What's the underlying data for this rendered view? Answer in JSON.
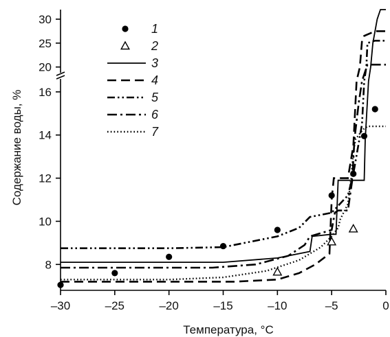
{
  "chart_data": {
    "type": "line",
    "xlabel": "Температура, °C",
    "ylabel": "Содержание воды, %",
    "xlim": [
      -30,
      0
    ],
    "ylim_lower": [
      6.8,
      16.6
    ],
    "ylim_upper": [
      18.8,
      32
    ],
    "axis_break": true,
    "x_ticks": [
      -30,
      -25,
      -20,
      -15,
      -10,
      -5,
      0
    ],
    "x_tick_labels": [
      "–30",
      "–25",
      "–20",
      "–15",
      "–10",
      "–5",
      "0"
    ],
    "y_ticks": [
      8,
      10,
      12,
      14,
      16,
      20,
      25,
      30
    ],
    "y_tick_labels": [
      "8",
      "10",
      "12",
      "14",
      "16",
      "20",
      "25",
      "30"
    ],
    "legend_position": "top-left",
    "grid": false,
    "series": [
      {
        "name": "1",
        "style": "marker-filled-circle",
        "x": [
          -30,
          -25,
          -20,
          -15,
          -10,
          -5,
          -3,
          -2,
          -1
        ],
        "y": [
          7.05,
          7.6,
          8.35,
          8.85,
          9.6,
          11.2,
          12.2,
          13.95,
          15.2
        ]
      },
      {
        "name": "2",
        "style": "marker-open-triangle",
        "x": [
          -10,
          -5,
          -3
        ],
        "y": [
          7.65,
          9.05,
          9.65
        ]
      },
      {
        "name": "3",
        "style": "solid",
        "x": [
          -30,
          -15,
          -10,
          -7,
          -6.8,
          -5,
          -4.6,
          -4.4,
          -2,
          -1.9,
          -1.6,
          -1.4,
          -1.2,
          -0.8,
          -0.5,
          0
        ],
        "y": [
          8.1,
          8.1,
          8.3,
          8.6,
          9.3,
          9.4,
          9.4,
          11.9,
          11.9,
          13.8,
          16.5,
          20,
          25,
          30,
          32,
          32
        ]
      },
      {
        "name": "4",
        "style": "dashed",
        "x": [
          -30,
          -14,
          -10,
          -8,
          -6.5,
          -5.2,
          -5,
          -4.8,
          -3.5,
          -3,
          -2.7,
          -2.4,
          -2.2,
          -2,
          -1.2,
          -1,
          0
        ],
        "y": [
          7.2,
          7.2,
          7.3,
          7.6,
          8.0,
          8.5,
          11,
          12.0,
          12.0,
          13.5,
          16.5,
          20,
          25.5,
          26.5,
          27.3,
          27.5,
          27.5
        ]
      },
      {
        "name": "5",
        "style": "dash-dot-dot",
        "x": [
          -30,
          -20,
          -15,
          -10,
          -8,
          -7,
          -5,
          -3.5,
          -3,
          -2.2,
          -2,
          -1.8,
          -1.7,
          -1.3,
          -1,
          0
        ],
        "y": [
          8.75,
          8.75,
          8.8,
          9.3,
          9.7,
          10.2,
          10.4,
          11.2,
          12.2,
          14.5,
          16.5,
          20,
          25,
          25.3,
          25.5,
          25.5
        ]
      },
      {
        "name": "6",
        "style": "dash-dot",
        "x": [
          -30,
          -16,
          -12,
          -9,
          -7.5,
          -7,
          -5,
          -4.7,
          -4.4,
          -3.5,
          -3.1,
          -2.9,
          -2.5,
          -2.2,
          -1.7,
          -1.5,
          0
        ],
        "y": [
          7.85,
          7.85,
          8.0,
          8.4,
          8.9,
          9.3,
          9.6,
          10.4,
          10.5,
          10.5,
          11.9,
          13.8,
          15.5,
          16.5,
          20.5,
          20.5,
          20.5
        ]
      },
      {
        "name": "7",
        "style": "dotted",
        "x": [
          -30,
          -20,
          -15,
          -11,
          -8,
          -6,
          -5,
          -4.4,
          -4.2,
          -3.5,
          -3.2,
          -3,
          -2.8,
          -2.5,
          -2.2,
          -2,
          -1.7,
          -1.3,
          0
        ],
        "y": [
          7.3,
          7.3,
          7.4,
          7.7,
          8.2,
          8.8,
          9.3,
          9.7,
          10.1,
          10.8,
          12.0,
          13.2,
          13.8,
          14.0,
          14.2,
          14.3,
          14.4,
          14.4,
          14.4
        ]
      }
    ]
  }
}
